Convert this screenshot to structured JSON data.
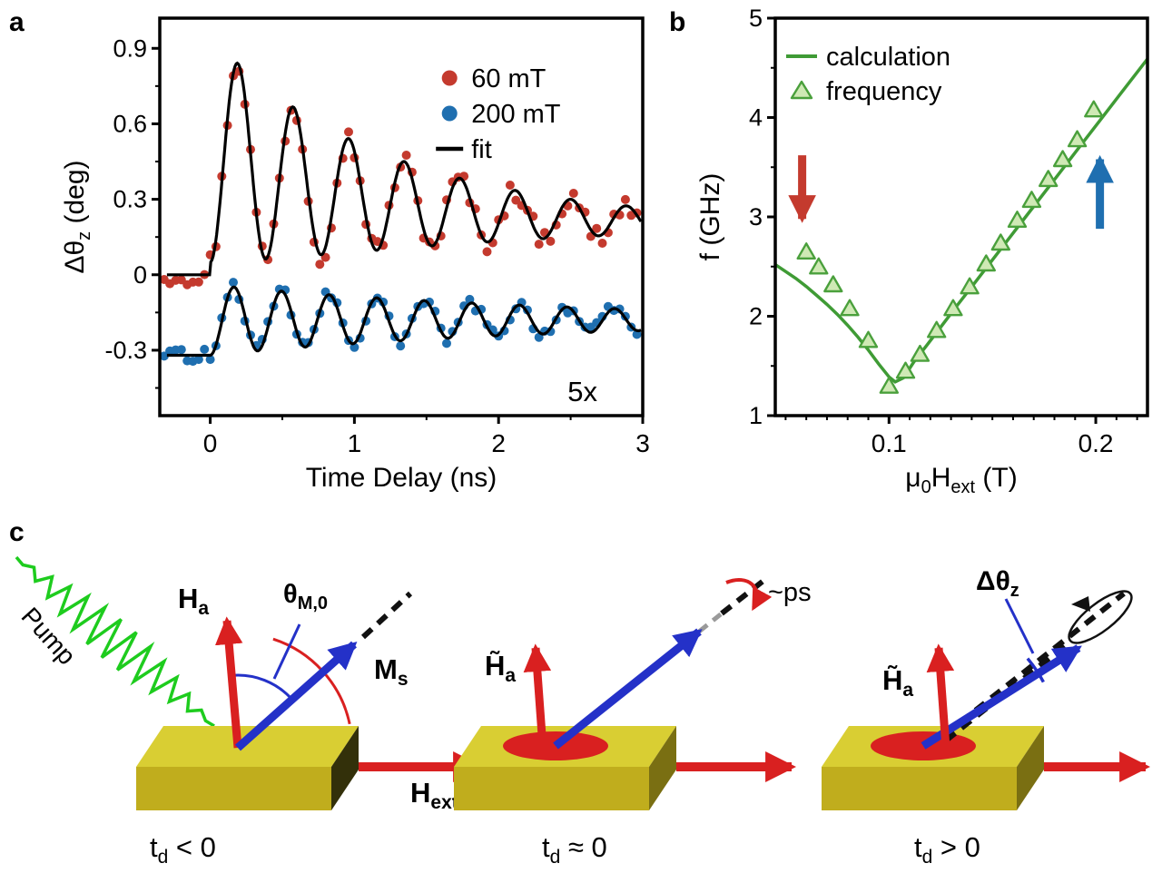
{
  "panels": {
    "a": "a",
    "b": "b",
    "c": "c"
  },
  "chart_data": [
    {
      "id": "panel-a",
      "type": "scatter",
      "title": "",
      "xlabel": "Time Delay (ns)",
      "ylabel": {
        "base": "Δθ",
        "sub": "z",
        "rest": " (deg)"
      },
      "xlim": [
        -0.35,
        3.0
      ],
      "ylim": [
        -0.56,
        1.02
      ],
      "xticks": {
        "major": [
          0,
          1,
          2,
          3
        ],
        "labels": [
          "0",
          "1",
          "2",
          "3"
        ],
        "minor": [
          0.5,
          1.5,
          2.5
        ]
      },
      "yticks": {
        "major": [
          0.9,
          0.6,
          0.3,
          0,
          -0.3
        ],
        "labels": [
          "0.9",
          "0.6",
          "0.3",
          "0",
          "-0.3"
        ],
        "minor": [
          0.75,
          0.45,
          0.15,
          -0.15,
          -0.45
        ]
      },
      "legend": [
        {
          "label": "60 mT",
          "marker": "dot",
          "color": "#c43a2e"
        },
        {
          "label": "200 mT",
          "marker": "dot",
          "color": "#1f6fb0"
        },
        {
          "label": "fit",
          "marker": "line",
          "color": "#000000"
        }
      ],
      "annotation": {
        "text": "5x",
        "color": "#1f6fb0"
      },
      "series": [
        {
          "name": "60 mT",
          "color": "#c43a2e",
          "noise": 0.042,
          "step": 0.04,
          "t_start": -0.32,
          "t_end": 2.99,
          "model": {
            "t0": 0,
            "pre": 0.0,
            "base": 0.2,
            "base_amp": 0.3,
            "base_tau": 1.0,
            "amp": 0.45,
            "amp_tau": 1.4,
            "period": 0.385
          }
        },
        {
          "name": "200 mT (5x)",
          "color": "#1f6fb0",
          "noise": 0.025,
          "step": 0.04,
          "t_start": -0.32,
          "t_end": 2.99,
          "model": {
            "t0": 0,
            "pre": -0.32,
            "base": -0.18,
            "base_amp": 0,
            "base_tau": 1,
            "amp": 0.14,
            "amp_tau": 2.5,
            "period": 0.33
          }
        }
      ],
      "fits": [
        {
          "color": "#000000",
          "t_start": -0.3,
          "t_end": 2.99,
          "model": {
            "t0": 0,
            "pre": 0.0,
            "base": 0.2,
            "base_amp": 0.3,
            "base_tau": 1.0,
            "amp": 0.45,
            "amp_tau": 1.4,
            "period": 0.385
          }
        },
        {
          "color": "#000000",
          "t_start": -0.3,
          "t_end": 2.99,
          "model": {
            "t0": 0,
            "pre": -0.32,
            "base": -0.18,
            "base_amp": 0,
            "base_tau": 1,
            "amp": 0.14,
            "amp_tau": 2.5,
            "period": 0.33
          }
        }
      ]
    },
    {
      "id": "panel-b",
      "type": "line+scatter",
      "ylabel": "f (GHz)",
      "xlabel": {
        "p1": "μ",
        "s1": "0",
        "p2": "H",
        "s2": "ext",
        "p3": " (T)"
      },
      "xlim": [
        0.045,
        0.225
      ],
      "ylim": [
        1,
        5
      ],
      "xticks": {
        "major": [
          0.1,
          0.2
        ],
        "labels": [
          "0.1",
          "0.2"
        ],
        "minor_from": 0.05,
        "minor_to": 0.22,
        "minor_step": 0.01
      },
      "yticks": {
        "major": [
          1,
          2,
          3,
          4,
          5
        ],
        "labels": [
          "1",
          "2",
          "3",
          "4",
          "5"
        ],
        "minor": [
          1.5,
          2.5,
          3.5,
          4.5
        ]
      },
      "legend": [
        {
          "label": "calculation",
          "marker": "line",
          "color": "#3f9b35"
        },
        {
          "label": "frequency",
          "marker": "triangle",
          "color": "#4aa03c",
          "fill": "#cfe9b5"
        }
      ],
      "calculation": {
        "color": "#3f9b35",
        "x": [
          0.045,
          0.05,
          0.055,
          0.06,
          0.065,
          0.07,
          0.075,
          0.08,
          0.085,
          0.09,
          0.095,
          0.1,
          0.103,
          0.107,
          0.112,
          0.118,
          0.125,
          0.133,
          0.142,
          0.152,
          0.162,
          0.172,
          0.182,
          0.192,
          0.202,
          0.212,
          0.225
        ],
        "y": [
          2.52,
          2.45,
          2.38,
          2.3,
          2.21,
          2.12,
          2.02,
          1.91,
          1.79,
          1.66,
          1.52,
          1.39,
          1.34,
          1.38,
          1.54,
          1.7,
          1.89,
          2.11,
          2.35,
          2.62,
          2.89,
          3.16,
          3.43,
          3.7,
          3.97,
          4.24,
          4.59
        ]
      },
      "frequency": {
        "edge": "#4aa03c",
        "fill": "#cfe9b5",
        "x": [
          0.06,
          0.066,
          0.073,
          0.081,
          0.09,
          0.1,
          0.108,
          0.115,
          0.123,
          0.131,
          0.139,
          0.147,
          0.154,
          0.162,
          0.169,
          0.177,
          0.184,
          0.191,
          0.199
        ],
        "y": [
          2.65,
          2.5,
          2.32,
          2.08,
          1.76,
          1.3,
          1.45,
          1.62,
          1.86,
          2.08,
          2.3,
          2.53,
          2.74,
          2.97,
          3.17,
          3.38,
          3.58,
          3.78,
          4.08
        ]
      },
      "arrows": [
        {
          "x": 0.058,
          "y_from": 3.62,
          "y_to": 2.98,
          "color": "#c43a2e",
          "marker": "ah-chart-red"
        },
        {
          "x": 0.202,
          "y_from": 2.88,
          "y_to": 3.58,
          "color": "#1f6fb0",
          "marker": "ah-chart-blue"
        }
      ]
    }
  ],
  "panel_c": {
    "pump": "Pump",
    "ha": {
      "base": "H",
      "sub": "a"
    },
    "theta_m0": {
      "base": "θ",
      "sub": "M,0"
    },
    "ms": {
      "base": "M",
      "sub": "s"
    },
    "hext": {
      "base": "H",
      "sub": "ext"
    },
    "hta": {
      "base": "H̃",
      "sub": "a"
    },
    "ps": "~ps",
    "dtheta": {
      "base": "Δθ",
      "sub": "z"
    },
    "captions": {
      "neg": {
        "base": "t",
        "sub": "d",
        "rest": " < 0"
      },
      "zero": {
        "base": "t",
        "sub": "d",
        "rest": " ≈ 0"
      },
      "pos": {
        "base": "t",
        "sub": "d",
        "rest": " > 0"
      }
    }
  }
}
